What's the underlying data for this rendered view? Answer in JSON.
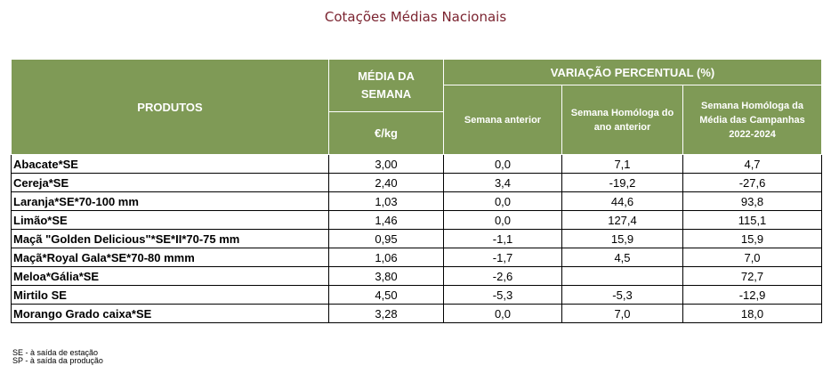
{
  "title": "Cotações Médias Nacionais",
  "headers": {
    "produtos": "PRODUTOS",
    "media_semana": "MÉDIA DA SEMANA",
    "unit": "€/kg",
    "variacao": "VARIAÇÃO PERCENTUAL (%)",
    "semana_anterior": "Semana anterior",
    "semana_homologa": "Semana Homóloga do ano anterior",
    "semana_homologa_campanhas": "Semana Homóloga da Média das Campanhas 2022-2024"
  },
  "rows": [
    {
      "produto": "Abacate*SE",
      "media": "3,00",
      "anterior": "0,0",
      "homologa": "7,1",
      "campanhas": "4,7"
    },
    {
      "produto": "Cereja*SE",
      "media": "2,40",
      "anterior": "3,4",
      "homologa": "-19,2",
      "campanhas": "-27,6"
    },
    {
      "produto": "Laranja*SE*70-100 mm",
      "media": "1,03",
      "anterior": "0,0",
      "homologa": "44,6",
      "campanhas": "93,8"
    },
    {
      "produto": "Limão*SE",
      "media": "1,46",
      "anterior": "0,0",
      "homologa": "127,4",
      "campanhas": "115,1"
    },
    {
      "produto": "Maçã \"Golden Delicious\"*SE*II*70-75 mm",
      "media": "0,95",
      "anterior": "-1,1",
      "homologa": "15,9",
      "campanhas": "15,9"
    },
    {
      "produto": "Maçã*Royal Gala*SE*70-80 mmm",
      "media": "1,06",
      "anterior": "-1,7",
      "homologa": "4,5",
      "campanhas": "7,0"
    },
    {
      "produto": "Meloa*Gália*SE",
      "media": "3,80",
      "anterior": "-2,6",
      "homologa": "",
      "campanhas": "72,7"
    },
    {
      "produto": "Mirtilo SE",
      "media": "4,50",
      "anterior": "-5,3",
      "homologa": "-5,3",
      "campanhas": "-12,9"
    },
    {
      "produto": "Morango Grado caixa*SE",
      "media": "3,28",
      "anterior": "0,0",
      "homologa": "7,0",
      "campanhas": "18,0"
    }
  ],
  "footnotes": {
    "se": "SE - à saída de estação",
    "sp": "SP - à saída da produção"
  },
  "colors": {
    "header_bg": "#7f9a56",
    "title": "#7b2430"
  }
}
